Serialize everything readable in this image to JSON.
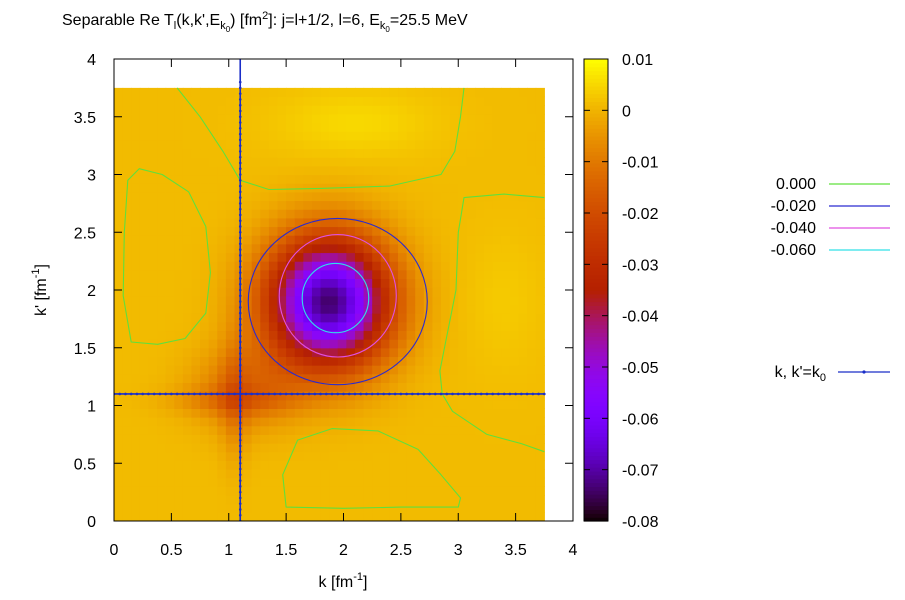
{
  "chart_data": {
    "type": "heatmap",
    "title": {
      "p1": "Separable Re T",
      "p2": "l",
      "p3": "(k,k',E",
      "p4": "k",
      "p5": "0",
      "p6": ") [fm",
      "p7": "2",
      "p8": "]: j=l+1/2, l=6, E",
      "p9": "k",
      "p10": "0",
      "p11": "=25.5 MeV"
    },
    "xlabel": {
      "base": "k [fm",
      "sup": "-1",
      "end": "]"
    },
    "ylabel": {
      "base": "k' [fm",
      "sup": "-1",
      "end": "]"
    },
    "xlim": [
      0,
      4
    ],
    "ylim": [
      0,
      4
    ],
    "x_ticks": [
      {
        "v": 0,
        "label": "0"
      },
      {
        "v": 0.5,
        "label": "0.5"
      },
      {
        "v": 1,
        "label": "1"
      },
      {
        "v": 1.5,
        "label": "1.5"
      },
      {
        "v": 2,
        "label": "2"
      },
      {
        "v": 2.5,
        "label": "2.5"
      },
      {
        "v": 3,
        "label": "3"
      },
      {
        "v": 3.5,
        "label": "3.5"
      },
      {
        "v": 4,
        "label": "4"
      }
    ],
    "y_ticks": [
      {
        "v": 0,
        "label": "0"
      },
      {
        "v": 0.5,
        "label": "0.5"
      },
      {
        "v": 1,
        "label": "1"
      },
      {
        "v": 1.5,
        "label": "1.5"
      },
      {
        "v": 2,
        "label": "2"
      },
      {
        "v": 2.5,
        "label": "2.5"
      },
      {
        "v": 3,
        "label": "3"
      },
      {
        "v": 3.5,
        "label": "3.5"
      },
      {
        "v": 4,
        "label": "4"
      }
    ],
    "data_extent": {
      "x": [
        0,
        3.75
      ],
      "y": [
        0,
        3.75
      ]
    },
    "k0": 1.1,
    "colorbar": {
      "range": [
        -0.08,
        0.01
      ],
      "ticks": [
        {
          "v": 0.01,
          "label": "0.01"
        },
        {
          "v": 0,
          "label": "0"
        },
        {
          "v": -0.01,
          "label": "-0.01"
        },
        {
          "v": -0.02,
          "label": "-0.02"
        },
        {
          "v": -0.03,
          "label": "-0.03"
        },
        {
          "v": -0.04,
          "label": "-0.04"
        },
        {
          "v": -0.05,
          "label": "-0.05"
        },
        {
          "v": -0.06,
          "label": "-0.06"
        },
        {
          "v": -0.07,
          "label": "-0.07"
        },
        {
          "v": -0.08,
          "label": "-0.08"
        }
      ],
      "palette": "gnuplot-pm3d"
    },
    "features": {
      "well_center": [
        1.87,
        1.9
      ],
      "well_min": -0.075,
      "upper_max_center": [
        2.1,
        3.45
      ],
      "upper_max": 0.004,
      "right_max_center": [
        3.4,
        1.9
      ],
      "right_max": 0.002,
      "bottom_max_center": [
        2.0,
        0.35
      ],
      "left_max_center": [
        0.35,
        2.2
      ]
    },
    "contours": [
      {
        "level": 0.0,
        "label": "0.000",
        "color": "#5fe03c"
      },
      {
        "level": -0.02,
        "label": "-0.020",
        "color": "#2a2ad0"
      },
      {
        "level": -0.04,
        "label": "-0.040",
        "color": "#e050e0"
      },
      {
        "level": -0.06,
        "label": "-0.060",
        "color": "#30e0e8"
      }
    ],
    "k0_line": {
      "label": {
        "base": "k, k'=k",
        "sub": "0"
      },
      "color": "#1a2ec8"
    },
    "legend_position": "right"
  }
}
